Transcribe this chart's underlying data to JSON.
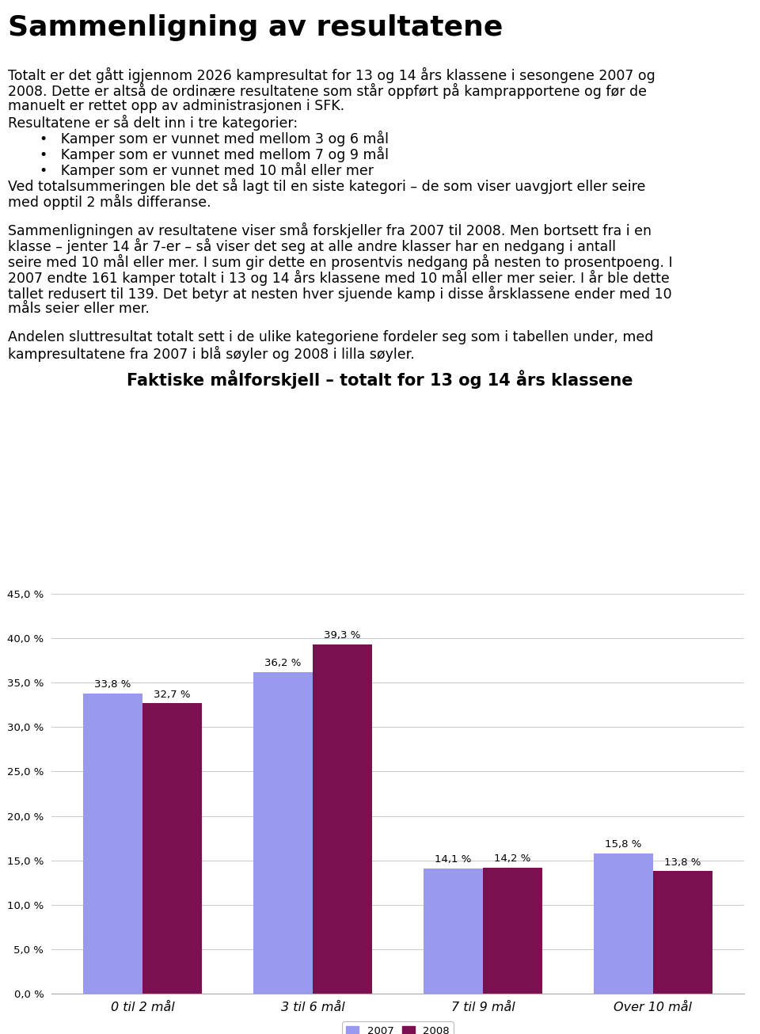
{
  "title": "Sammenligning av resultatene",
  "para1": "Totalt er det gått igjennom 2026 kampresultat for 13 og 14 års klassene i sesongene 2007 og 2008. Dette er altså de ordinære resultatene som står oppført på kamprapportene og før de manuelt er rettet opp av administrasjonen i SFK.",
  "para2_intro": "Resultatene er så delt inn i tre kategorier:",
  "bullet_points": [
    "Kamper som er vunnet med mellom 3 og 6 mål",
    "Kamper som er vunnet med mellom 7 og 9 mål",
    "Kamper som er vunnet med 10 mål eller mer"
  ],
  "para2_end": "Ved totalsummeringen ble det så lagt til en siste kategori – de som viser uavgjort eller seire med opptil 2 måls differanse.",
  "para3": "Sammenligningen av resultatene viser små forskjeller fra 2007 til 2008. Men bortsett fra i en klasse – jenter 14 år 7-er – så viser det seg at alle andre klasser har en nedgang i antall seire med 10 mål eller mer. I sum gir dette en prosentvis nedgang på nesten to prosentpoeng. I 2007 endte 161 kamper totalt i 13 og 14 års klassene med 10 mål eller mer seier. I år ble dette tallet redusert til 139. Det betyr at nesten hver sjuende kamp i disse årsklassene ender med 10 måls seier eller mer.",
  "para4": "Andelen sluttresultat totalt sett i de ulike kategoriene fordeler seg som i tabellen under, med kampresultatene fra 2007 i blå søyler og 2008 i lilla søyler.",
  "chart_title": "Faktiske målforskjell – totalt for 13 og 14 års klassene",
  "categories": [
    "0 til 2 mål",
    "3 til 6 mål",
    "7 til 9 mål",
    "Over 10 mål"
  ],
  "values_2007": [
    33.8,
    36.2,
    14.1,
    15.8
  ],
  "values_2008": [
    32.7,
    39.3,
    14.2,
    13.8
  ],
  "labels_2007": [
    "33,8 %",
    "36,2 %",
    "14,1 %",
    "15,8 %"
  ],
  "labels_2008": [
    "32,7 %",
    "39,3 %",
    "14,2 %",
    "13,8 %"
  ],
  "color_2007": "#9999EE",
  "color_2008": "#7B1050",
  "ylim": [
    0,
    45
  ],
  "yticks": [
    0,
    5,
    10,
    15,
    20,
    25,
    30,
    35,
    40,
    45
  ],
  "ytick_labels": [
    "0,0 %",
    "5,0 %",
    "10,0 %",
    "15,0 %",
    "20,0 %",
    "25,0 %",
    "30,0 %",
    "35,0 %",
    "40,0 %",
    "45,0 %"
  ],
  "legend_2007": "2007",
  "legend_2008": "2008",
  "background_color": "#ffffff",
  "grid_color": "#cccccc"
}
